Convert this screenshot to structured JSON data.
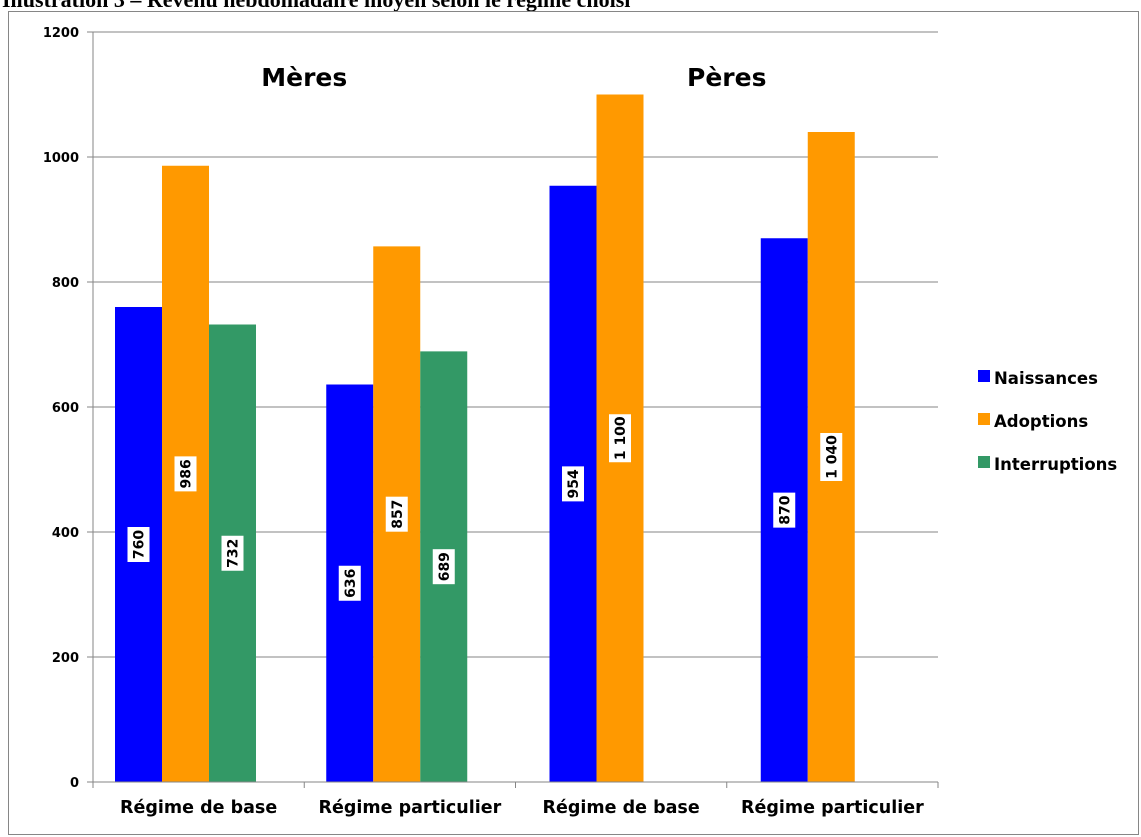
{
  "page": {
    "title": "Illustration 3 – Revenu hebdomadaire moyen selon le régime choisi"
  },
  "chart_data": {
    "type": "bar",
    "title": "",
    "xlabel": "",
    "ylabel": "",
    "ylim": [
      0,
      1200
    ],
    "yticks": [
      0,
      200,
      400,
      600,
      800,
      1000,
      1200
    ],
    "grid": true,
    "legend_position": "right",
    "categories": [
      "Régime de base",
      "Régime particulier",
      "Régime de base",
      "Régime particulier"
    ],
    "groups": [
      {
        "label": "Mères",
        "categories": [
          0,
          1
        ]
      },
      {
        "label": "Pères",
        "categories": [
          2,
          3
        ]
      }
    ],
    "series": [
      {
        "name": "Naissances",
        "color": "#0000FF",
        "values": [
          760,
          636,
          954,
          870
        ],
        "labels": [
          "760",
          "636",
          "954",
          "870"
        ]
      },
      {
        "name": "Adoptions",
        "color": "#FF9900",
        "values": [
          986,
          857,
          1100,
          1040
        ],
        "labels": [
          "986",
          "857",
          "1 100",
          "1 040"
        ]
      },
      {
        "name": "Interruptions",
        "color": "#339966",
        "values": [
          732,
          689,
          null,
          null
        ],
        "labels": [
          "732",
          "689",
          "",
          ""
        ]
      }
    ]
  }
}
